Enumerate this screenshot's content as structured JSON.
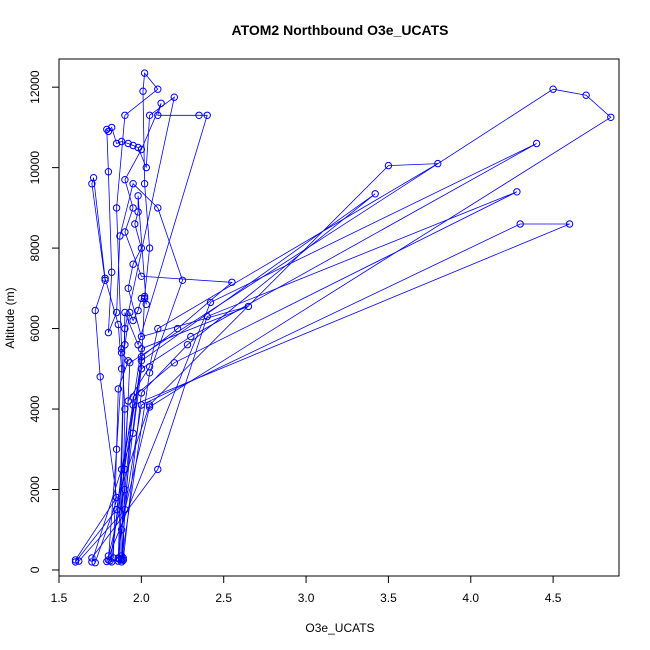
{
  "chart_data": {
    "type": "line",
    "title": "ATOM2 Northbound O3e_UCATS",
    "xlabel": "O3e_UCATS",
    "ylabel": "Altitude (m)",
    "xlim": [
      1.5,
      4.9
    ],
    "ylim": [
      -150,
      12700
    ],
    "xticks": [
      1.5,
      2.0,
      2.5,
      3.0,
      3.5,
      4.0,
      4.5
    ],
    "xtick_labels": [
      "1.5",
      "2.0",
      "2.5",
      "3.0",
      "3.5",
      "4.0",
      "4.5"
    ],
    "yticks": [
      0,
      2000,
      4000,
      6000,
      8000,
      10000,
      12000
    ],
    "ytick_labels": [
      "0",
      "2000",
      "4000",
      "6000",
      "8000",
      "10000",
      "12000"
    ],
    "grid": false,
    "marker": "open-circle",
    "color": "#0000ff",
    "series": [
      {
        "points": [
          [
            1.6,
            250
          ],
          [
            1.85,
            1800
          ],
          [
            1.75,
            4800
          ],
          [
            1.72,
            6450
          ],
          [
            1.78,
            7200
          ],
          [
            1.7,
            9600
          ],
          [
            1.71,
            9750
          ],
          [
            1.78,
            7250
          ],
          [
            1.86,
            6100
          ],
          [
            1.88,
            5000
          ],
          [
            1.85,
            3000
          ],
          [
            1.8,
            250
          ]
        ]
      },
      {
        "points": [
          [
            1.7,
            200
          ],
          [
            1.95,
            3400
          ],
          [
            2.0,
            5000
          ],
          [
            2.02,
            6800
          ],
          [
            2.05,
            8000
          ],
          [
            2.02,
            9600
          ],
          [
            2.01,
            11900
          ],
          [
            2.02,
            12350
          ],
          [
            2.1,
            11950
          ],
          [
            1.9,
            11300
          ],
          [
            1.85,
            9000
          ],
          [
            1.88,
            5500
          ],
          [
            1.9,
            4000
          ],
          [
            1.88,
            350
          ]
        ]
      },
      {
        "points": [
          [
            1.8,
            350
          ],
          [
            1.9,
            2000
          ],
          [
            1.95,
            4100
          ],
          [
            4.6,
            8600
          ],
          [
            4.3,
            8600
          ],
          [
            2.0,
            4100
          ],
          [
            1.88,
            1000
          ],
          [
            1.89,
            250
          ]
        ]
      },
      {
        "points": [
          [
            1.62,
            220
          ],
          [
            1.9,
            1500
          ],
          [
            2.05,
            4050
          ],
          [
            4.85,
            11250
          ],
          [
            4.7,
            11800
          ],
          [
            4.5,
            11950
          ],
          [
            1.93,
            5150
          ],
          [
            1.9,
            2500
          ],
          [
            1.89,
            300
          ]
        ]
      },
      {
        "points": [
          [
            1.7,
            300
          ],
          [
            2.1,
            2500
          ],
          [
            2.4,
            6300
          ],
          [
            4.28,
            9400
          ],
          [
            2.2,
            5150
          ],
          [
            1.95,
            4300
          ],
          [
            1.88,
            200
          ]
        ]
      },
      {
        "points": [
          [
            1.72,
            180
          ],
          [
            2.05,
            4100
          ],
          [
            3.5,
            10050
          ],
          [
            3.8,
            10100
          ],
          [
            2.1,
            6000
          ],
          [
            2.05,
            5050
          ],
          [
            1.92,
            4200
          ],
          [
            1.86,
            220
          ]
        ]
      },
      {
        "points": [
          [
            1.79,
            210
          ],
          [
            2.42,
            6650
          ],
          [
            4.4,
            10600
          ],
          [
            2.3,
            5800
          ],
          [
            2.0,
            5000
          ],
          [
            1.88,
            2500
          ],
          [
            1.82,
            200
          ]
        ]
      },
      {
        "points": [
          [
            1.81,
            230
          ],
          [
            2.0,
            5200
          ],
          [
            3.42,
            9350
          ],
          [
            2.28,
            5600
          ],
          [
            2.0,
            4400
          ],
          [
            1.89,
            240
          ]
        ]
      },
      {
        "points": [
          [
            1.88,
            260
          ],
          [
            2.05,
            4900
          ],
          [
            2.25,
            7200
          ],
          [
            2.1,
            9000
          ],
          [
            1.95,
            9600
          ],
          [
            1.87,
            8300
          ],
          [
            1.85,
            6400
          ],
          [
            1.8,
            5900
          ],
          [
            1.82,
            7400
          ],
          [
            1.8,
            9900
          ],
          [
            1.79,
            10950
          ],
          [
            1.8,
            10900
          ],
          [
            1.82,
            11000
          ],
          [
            1.85,
            10600
          ],
          [
            1.88,
            10650
          ],
          [
            1.92,
            10600
          ],
          [
            1.95,
            10550
          ],
          [
            1.98,
            10500
          ],
          [
            2.03,
            10000
          ],
          [
            2.05,
            11300
          ],
          [
            2.2,
            11750
          ],
          [
            1.9,
            6000
          ],
          [
            1.86,
            280
          ]
        ]
      },
      {
        "points": [
          [
            1.86,
            300
          ],
          [
            2.0,
            5300
          ],
          [
            2.22,
            6000
          ],
          [
            2.55,
            7150
          ],
          [
            2.0,
            7300
          ],
          [
            1.9,
            8400
          ],
          [
            1.95,
            9000
          ],
          [
            1.9,
            9700
          ],
          [
            2.0,
            10450
          ],
          [
            2.12,
            11600
          ],
          [
            2.1,
            11300
          ],
          [
            2.35,
            11300
          ],
          [
            2.4,
            11300
          ],
          [
            1.98,
            5600
          ],
          [
            1.9,
            6400
          ],
          [
            1.87,
            260
          ]
        ]
      },
      {
        "points": [
          [
            1.6,
            200
          ],
          [
            1.85,
            1500
          ],
          [
            2.0,
            5500
          ],
          [
            2.65,
            6550
          ],
          [
            2.0,
            5800
          ],
          [
            1.92,
            7000
          ],
          [
            1.95,
            7600
          ],
          [
            2.0,
            8000
          ],
          [
            1.96,
            8600
          ],
          [
            1.98,
            8900
          ],
          [
            1.98,
            9300
          ],
          [
            2.03,
            6600
          ],
          [
            2.02,
            6750
          ],
          [
            2.0,
            6750
          ],
          [
            1.98,
            6450
          ],
          [
            1.95,
            6200
          ],
          [
            1.93,
            6400
          ],
          [
            1.9,
            5600
          ],
          [
            1.88,
            5400
          ],
          [
            1.92,
            5200
          ],
          [
            1.86,
            4500
          ],
          [
            1.83,
            300
          ]
        ]
      }
    ]
  }
}
